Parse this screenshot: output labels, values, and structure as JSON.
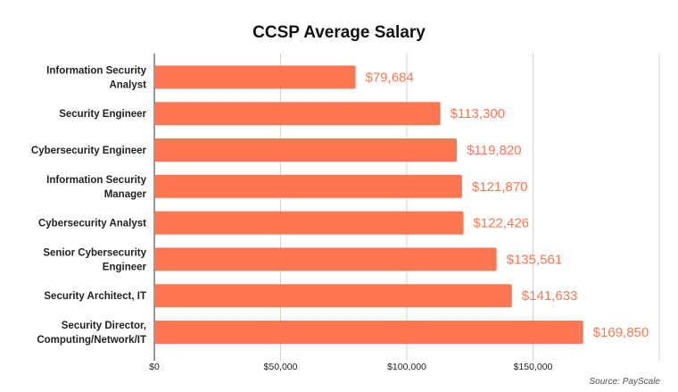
{
  "chart_data": {
    "type": "bar",
    "orientation": "horizontal",
    "title": "CCSP Average Salary",
    "categories": [
      [
        "Information Security",
        "Analyst"
      ],
      [
        "Security Engineer"
      ],
      [
        "Cybersecurity Engineer"
      ],
      [
        "Information Security",
        "Manager"
      ],
      [
        "Cybersecurity Analyst"
      ],
      [
        "Senior Cybersecurity",
        "Engineer"
      ],
      [
        "Security Architect, IT"
      ],
      [
        "Security Director,",
        "Computing/Network/IT"
      ]
    ],
    "values": [
      79684,
      113300,
      119820,
      121870,
      122426,
      135561,
      141633,
      169850
    ],
    "value_labels": [
      "$79,684",
      "$113,300",
      "$119,820",
      "$121,870",
      "$122,426",
      "$135,561",
      "$141,633",
      "$169,850"
    ],
    "xlim": [
      0,
      200000
    ],
    "xticks": [
      0,
      50000,
      100000,
      150000
    ],
    "xtick_labels": [
      "$0",
      "$50,000",
      "$100,000",
      "$150,000"
    ],
    "grid": true,
    "bar_color": "#FF7750",
    "label_color": "#FF7750",
    "source": "Source: PayScale"
  }
}
